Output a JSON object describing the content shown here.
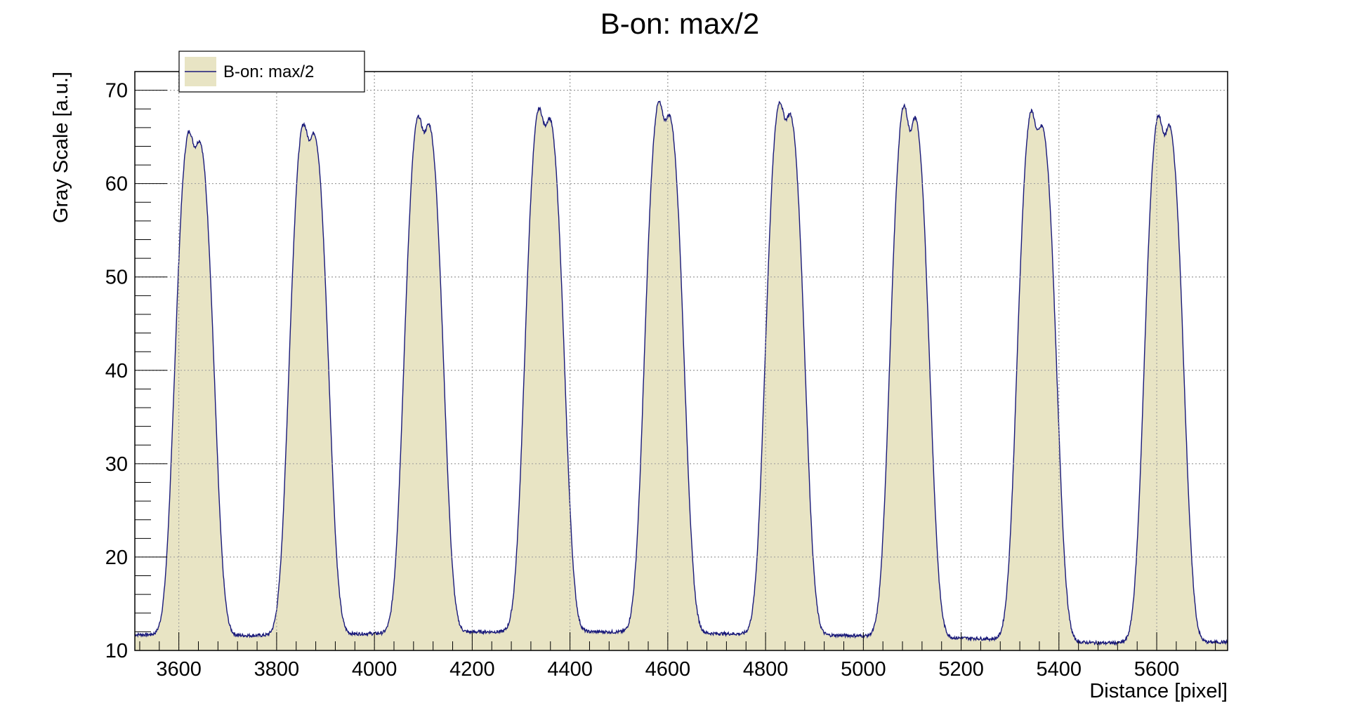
{
  "chart_data": {
    "type": "area",
    "title": "B-on: max/2",
    "xlabel": "Distance [pixel]",
    "ylabel": "Gray Scale [a.u.]",
    "xlim": [
      3510,
      5745
    ],
    "ylim": [
      10,
      72
    ],
    "x_ticks": [
      3600,
      3800,
      4000,
      4200,
      4400,
      4600,
      4800,
      5000,
      5200,
      5400,
      5600
    ],
    "y_ticks": [
      10,
      20,
      30,
      40,
      50,
      60,
      70
    ],
    "grid": true,
    "legend_position": "top-left",
    "colors": {
      "fill": "#e8e4c4",
      "line": "#1a1a7a",
      "grid": "#9a9a9a"
    },
    "series": [
      {
        "name": "B-on: max/2",
        "baseline": 11.5,
        "peaks": [
          {
            "center": 3632,
            "left_peak": 66.8,
            "right_peak": 65.5,
            "dip": 63.3
          },
          {
            "center": 3866,
            "left_peak": 67.6,
            "right_peak": 66.3,
            "dip": 64.0
          },
          {
            "center": 4101,
            "left_peak": 68.4,
            "right_peak": 67.3,
            "dip": 64.9
          },
          {
            "center": 4348,
            "left_peak": 69.4,
            "right_peak": 68.0,
            "dip": 65.6
          },
          {
            "center": 4593,
            "left_peak": 70.0,
            "right_peak": 68.2,
            "dip": 65.9
          },
          {
            "center": 4840,
            "left_peak": 70.0,
            "right_peak": 68.3,
            "dip": 66.0
          },
          {
            "center": 5095,
            "left_peak": 69.8,
            "right_peak": 68.2,
            "dip": 64.8
          },
          {
            "center": 5355,
            "left_peak": 68.9,
            "right_peak": 66.9,
            "dip": 64.5
          },
          {
            "center": 5615,
            "left_peak": 68.7,
            "right_peak": 67.3,
            "dip": 64.5
          }
        ],
        "minima": [
          {
            "x": 3510,
            "y": 11.7
          },
          {
            "x": 3751,
            "y": 11.6
          },
          {
            "x": 3983,
            "y": 11.8
          },
          {
            "x": 4225,
            "y": 12.0
          },
          {
            "x": 4468,
            "y": 12.0
          },
          {
            "x": 4716,
            "y": 11.8
          },
          {
            "x": 4970,
            "y": 11.6
          },
          {
            "x": 5226,
            "y": 11.3
          },
          {
            "x": 5485,
            "y": 10.8
          },
          {
            "x": 5745,
            "y": 10.9
          }
        ]
      }
    ]
  }
}
